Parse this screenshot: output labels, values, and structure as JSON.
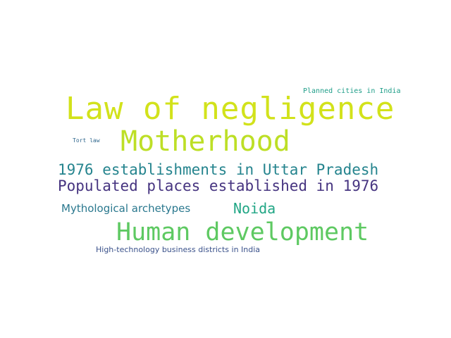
{
  "words": [
    {
      "id": "law",
      "text": "Law of negligence",
      "color": "#d2e21b"
    },
    {
      "id": "mother",
      "text": "Motherhood",
      "color": "#bddf26"
    },
    {
      "id": "est1976",
      "text": "1976 establishments in Uttar Pradesh",
      "color": "#25848e"
    },
    {
      "id": "populated",
      "text": "Populated places established in 1976",
      "color": "#463480"
    },
    {
      "id": "mytho",
      "text": "Mythological archetypes",
      "color": "#2a788e"
    },
    {
      "id": "noida",
      "text": "Noida",
      "color": "#21a685"
    },
    {
      "id": "human",
      "text": "Human development",
      "color": "#5ec962"
    },
    {
      "id": "hightech",
      "text": "High-technology business districts in India",
      "color": "#3b528b"
    },
    {
      "id": "planned",
      "text": "Planned cities in India",
      "color": "#1f9e89"
    },
    {
      "id": "tort",
      "text": "Tort law",
      "color": "#31688e"
    }
  ]
}
